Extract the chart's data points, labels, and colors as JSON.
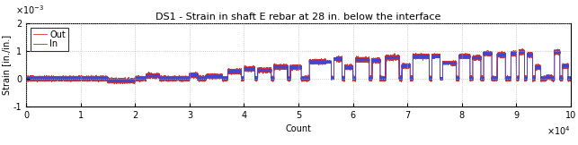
{
  "title": "DS1 - Strain in shaft E rebar at 28 in. below the interface",
  "xlabel": "Count",
  "ylabel": "Strain [in./in.]",
  "xlim": [
    0,
    100000
  ],
  "ylim": [
    -0.001,
    0.002
  ],
  "yticks": [
    -0.001,
    0,
    0.001,
    0.002
  ],
  "xticks": [
    0,
    10000,
    20000,
    30000,
    40000,
    50000,
    60000,
    70000,
    80000,
    90000,
    100000
  ],
  "xtick_labels": [
    "0",
    "1",
    "2",
    "3",
    "4",
    "5",
    "6",
    "7",
    "8",
    "9",
    "10"
  ],
  "ytick_labels": [
    "-1",
    "0",
    "1",
    "2"
  ],
  "legend_in_label": "In",
  "legend_out_label": "Out",
  "color_in": "#4444cc",
  "color_out": "#cc3333",
  "background_color": "#ffffff",
  "grid_color": "#bbbbbb",
  "title_fontsize": 8,
  "axis_fontsize": 7,
  "tick_fontsize": 7,
  "legend_fontsize": 7
}
